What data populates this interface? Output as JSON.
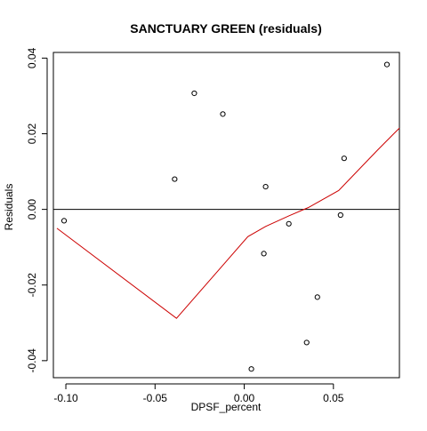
{
  "chart_data": {
    "type": "scatter",
    "title": "SANCTUARY GREEN (residuals)",
    "xlabel": "DPSF_percent",
    "ylabel": "Residuals",
    "xlim": [
      -0.107,
      0.087
    ],
    "ylim": [
      -0.0445,
      0.0415
    ],
    "x_ticks": [
      -0.1,
      -0.05,
      0.0,
      0.05
    ],
    "x_tick_labels": [
      "-0.10",
      "-0.05",
      "0.00",
      "0.05"
    ],
    "y_ticks": [
      -0.04,
      -0.02,
      0.0,
      0.02,
      0.04
    ],
    "y_tick_labels": [
      "-0.04",
      "-0.02",
      "0.00",
      "0.02",
      "0.04"
    ],
    "reference_line_y": 0,
    "grid": false,
    "points": [
      {
        "x": -0.101,
        "y": -0.003
      },
      {
        "x": -0.039,
        "y": 0.008
      },
      {
        "x": -0.028,
        "y": 0.0307
      },
      {
        "x": -0.012,
        "y": 0.0252
      },
      {
        "x": 0.004,
        "y": -0.0422
      },
      {
        "x": 0.011,
        "y": -0.0117
      },
      {
        "x": 0.012,
        "y": 0.006
      },
      {
        "x": 0.025,
        "y": -0.0038
      },
      {
        "x": 0.035,
        "y": -0.0352
      },
      {
        "x": 0.041,
        "y": -0.0232
      },
      {
        "x": 0.054,
        "y": -0.0015
      },
      {
        "x": 0.056,
        "y": 0.0135
      },
      {
        "x": 0.08,
        "y": 0.0383
      }
    ],
    "smooth_line": [
      {
        "x": -0.105,
        "y": -0.005
      },
      {
        "x": -0.038,
        "y": -0.0288
      },
      {
        "x": 0.002,
        "y": -0.0072
      },
      {
        "x": 0.012,
        "y": -0.0045
      },
      {
        "x": 0.025,
        "y": -0.0017
      },
      {
        "x": 0.036,
        "y": 0.0005
      },
      {
        "x": 0.053,
        "y": 0.005
      },
      {
        "x": 0.075,
        "y": 0.0158
      },
      {
        "x": 0.087,
        "y": 0.0215
      }
    ],
    "colors": {
      "points": "#000000",
      "smooth_line": "#cc0000",
      "reference_line": "#000000",
      "axes": "#000000"
    }
  }
}
